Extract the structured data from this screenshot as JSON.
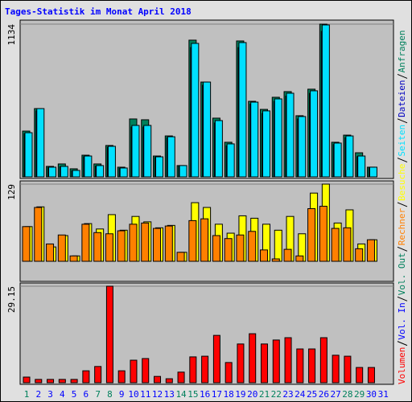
{
  "title": "Tages-Statistik im Monat April 2018",
  "categories": [
    "1",
    "2",
    "3",
    "4",
    "5",
    "6",
    "7",
    "8",
    "9",
    "10",
    "11",
    "12",
    "13",
    "14",
    "15",
    "16",
    "17",
    "18",
    "19",
    "20",
    "21",
    "22",
    "23",
    "24",
    "25",
    "26",
    "27",
    "28",
    "29",
    "30",
    "31"
  ],
  "category_colors": [
    "#00805c",
    "#0000ff",
    "#0000ff",
    "#0000ff",
    "#0000ff",
    "#0000ff",
    "#00805c",
    "#00805c",
    "#0000ff",
    "#0000ff",
    "#0000ff",
    "#0000ff",
    "#0000ff",
    "#00805c",
    "#00805c",
    "#0000ff",
    "#0000ff",
    "#0000ff",
    "#0000ff",
    "#0000ff",
    "#00805c",
    "#00805c",
    "#0000ff",
    "#0000ff",
    "#0000ff",
    "#0000ff",
    "#0000ff",
    "#00805c",
    "#00805c",
    "#0000ff",
    "#0000ff"
  ],
  "chart_data": [
    {
      "type": "bar",
      "ylim": [
        0,
        1134
      ],
      "yticks": [
        1134
      ],
      "series": [
        {
          "name": "Anfragen",
          "color": "#00805c",
          "values": [
            340,
            507,
            78,
            96,
            60,
            161,
            96,
            233,
            72,
            430,
            424,
            155,
            304,
            84,
            1015,
            704,
            436,
            257,
            1009,
            561,
            501,
            591,
            633,
            454,
            651,
            1134,
            257,
            310,
            179,
            72,
            null
          ]
        },
        {
          "name": "Dateien",
          "color": "#0000c0",
          "values": [
            320,
            490,
            70,
            75,
            45,
            150,
            80,
            220,
            62,
            370,
            370,
            145,
            290,
            80,
            960,
            680,
            400,
            230,
            960,
            540,
            470,
            560,
            600,
            430,
            620,
            1080,
            240,
            290,
            150,
            68,
            null
          ]
        },
        {
          "name": "Seiten",
          "color": "#00e0ff",
          "values": [
            328,
            507,
            72,
            78,
            48,
            155,
            84,
            227,
            66,
            382,
            382,
            149,
            298,
            84,
            991,
            704,
            418,
            245,
            997,
            555,
            490,
            579,
            621,
            448,
            639,
            1128,
            251,
            304,
            155,
            72,
            null
          ]
        }
      ]
    },
    {
      "type": "bar",
      "ylim": [
        0,
        129
      ],
      "yticks": [
        129
      ],
      "series": [
        {
          "name": "Besuche",
          "color": "#ffff00",
          "values": [
            58,
            91,
            24,
            43,
            9,
            63,
            54,
            78,
            52,
            75,
            66,
            56,
            60,
            15,
            98,
            90,
            62,
            47,
            76,
            72,
            62,
            52,
            75,
            46,
            114,
            129,
            64,
            86,
            29,
            36,
            null
          ]
        },
        {
          "name": "Rechner",
          "color": "#ff8000",
          "values": [
            58,
            90,
            29,
            44,
            9,
            62,
            48,
            46,
            51,
            62,
            64,
            55,
            59,
            15,
            68,
            71,
            43,
            38,
            44,
            50,
            19,
            4,
            20,
            9,
            88,
            92,
            55,
            56,
            21,
            36,
            null
          ]
        }
      ]
    },
    {
      "type": "bar",
      "ylim": [
        0,
        29.15
      ],
      "yticks": [
        29.15
      ],
      "series": [
        {
          "name": "Volumen",
          "color": "#ff0000",
          "values": [
            1.7,
            1.0,
            1.0,
            1.0,
            1.0,
            3.6,
            4.9,
            29.15,
            3.6,
            6.8,
            7.3,
            1.9,
            1.2,
            3.2,
            7.8,
            8.0,
            14.3,
            6.1,
            11.7,
            14.8,
            11.7,
            12.9,
            13.6,
            10.2,
            10.2,
            13.6,
            8.3,
            8.0,
            4.6,
            4.6,
            null
          ]
        },
        {
          "name": "Vol. In",
          "color": "#0000ff",
          "values": [
            null,
            null,
            null,
            null,
            null,
            null,
            null,
            null,
            null,
            null,
            null,
            null,
            null,
            null,
            null,
            null,
            null,
            null,
            null,
            null,
            null,
            null,
            null,
            null,
            null,
            null,
            null,
            null,
            null,
            null,
            null
          ]
        },
        {
          "name": "Vol. Out",
          "color": "#00805c",
          "values": [
            null,
            null,
            null,
            null,
            null,
            null,
            null,
            null,
            null,
            null,
            null,
            null,
            null,
            null,
            null,
            null,
            null,
            null,
            null,
            null,
            null,
            null,
            null,
            null,
            null,
            null,
            null,
            null,
            null,
            null,
            null
          ]
        }
      ]
    }
  ]
}
